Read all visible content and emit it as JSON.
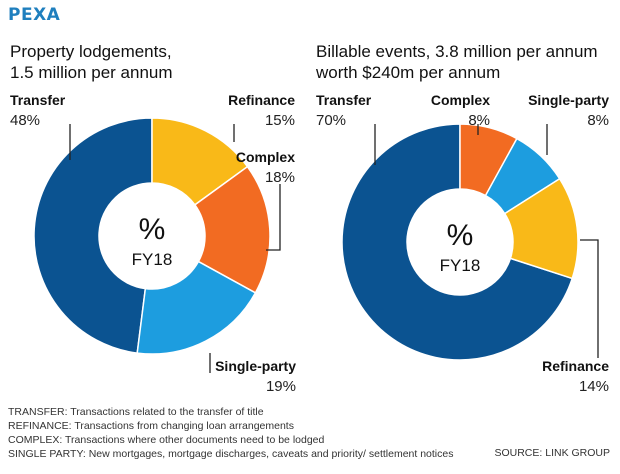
{
  "header": {
    "brand": "PEXA"
  },
  "colors": {
    "transfer": "#0b5391",
    "refinance": "#f9b918",
    "complex": "#f26b22",
    "single_party": "#1d9ddf",
    "brand": "#1f7fbe"
  },
  "chart_data": [
    {
      "type": "pie",
      "title_line1": "Property lodgements,",
      "title_line2": "1.5 million per annum",
      "center_symbol": "%",
      "center_label": "FY18",
      "slices": [
        {
          "name": "Transfer",
          "value": 48,
          "display": "48%"
        },
        {
          "name": "Refinance",
          "value": 15,
          "display": "15%"
        },
        {
          "name": "Complex",
          "value": 18,
          "display": "18%"
        },
        {
          "name": "Single-party",
          "value": 19,
          "display": "19%"
        }
      ]
    },
    {
      "type": "pie",
      "title_line1": "Billable events, 3.8 million per annum",
      "title_line2": "worth $240m per annum",
      "center_symbol": "%",
      "center_label": "FY18",
      "slices": [
        {
          "name": "Transfer",
          "value": 70,
          "display": "70%"
        },
        {
          "name": "Complex",
          "value": 8,
          "display": "8%"
        },
        {
          "name": "Single-party",
          "value": 8,
          "display": "8%"
        },
        {
          "name": "Refinance",
          "value": 14,
          "display": "14%"
        }
      ]
    }
  ],
  "footnotes": [
    "TRANSFER: Transactions related to the transfer of title",
    "REFINANCE: Transactions from changing loan arrangements",
    "COMPLEX: Transactions where other documents need to be lodged",
    "SINGLE PARTY: New mortgages, mortgage discharges, caveats and priority/ settlement notices"
  ],
  "source": "SOURCE: LINK GROUP"
}
